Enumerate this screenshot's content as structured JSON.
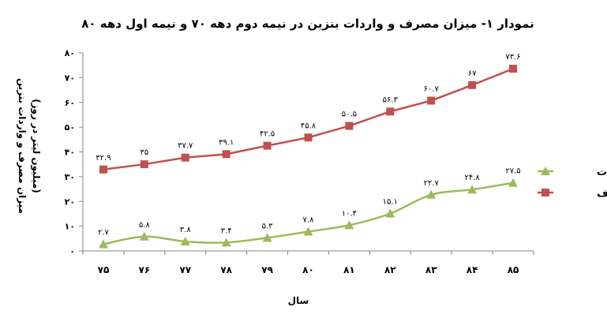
{
  "chart_data": {
    "type": "line",
    "title": "نمودار ۱- میزان مصرف و واردات بنزین در نیمه دوم دهه ۷۰ و نیمه اول دهه ۸۰",
    "xlabel": "سال",
    "ylabel": "میزان مصرف و واردات بنزین",
    "ylabel_unit": "(میلیون لیتر در روز)",
    "categories": [
      "۷۵",
      "۷۶",
      "۷۷",
      "۷۸",
      "۷۹",
      "۸۰",
      "۸۱",
      "۸۲",
      "۸۳",
      "۸۴",
      "۸۵"
    ],
    "x": [
      75,
      76,
      77,
      78,
      79,
      80,
      81,
      82,
      83,
      84,
      85
    ],
    "ylim": [
      0,
      80
    ],
    "yticks": [
      0,
      10,
      20,
      30,
      40,
      50,
      60,
      70,
      80
    ],
    "ytick_labels": [
      "۰",
      "۱۰",
      "۲۰",
      "۳۰",
      "۴۰",
      "۵۰",
      "۶۰",
      "۷۰",
      "۸۰"
    ],
    "grid": false,
    "legend_position": "right",
    "series": [
      {
        "name": "واردات",
        "color": "#9BBB59",
        "marker": "triangle",
        "smooth": true,
        "values": [
          2.7,
          5.8,
          3.8,
          3.4,
          5.3,
          7.8,
          10.4,
          15.1,
          22.7,
          24.8,
          27.5
        ],
        "labels": [
          "۲.۷",
          "۵.۸",
          "۳.۸",
          "۳.۴",
          "۵.۳",
          "۷.۸",
          "۱۰.۴",
          "۱۵.۱",
          "۲۲.۷",
          "۲۴.۸",
          "۲۷.۵"
        ]
      },
      {
        "name": "مصرف",
        "color": "#C0504D",
        "marker": "square",
        "smooth": false,
        "values": [
          32.9,
          35,
          37.7,
          39.1,
          42.5,
          45.8,
          50.5,
          56.3,
          60.7,
          67,
          73.6
        ],
        "labels": [
          "۳۲.۹",
          "۳۵",
          "۳۷.۷",
          "۳۹.۱",
          "۴۲.۵",
          "۴۵.۸",
          "۵۰.۵",
          "۵۶.۳",
          "۶۰.۷",
          "۶۷",
          "۷۳.۶"
        ]
      }
    ]
  }
}
